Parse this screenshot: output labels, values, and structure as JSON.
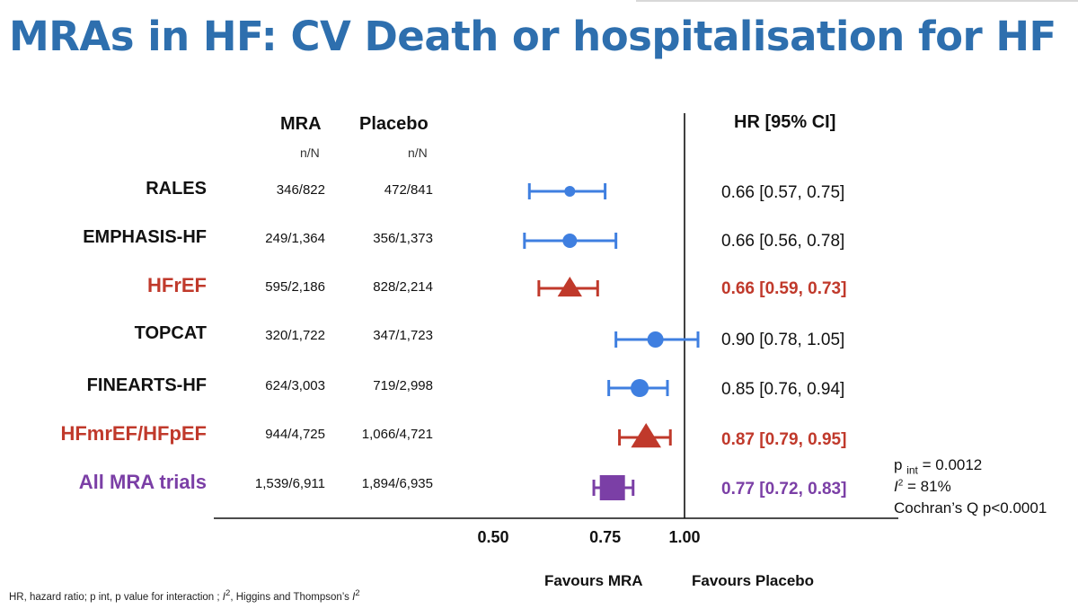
{
  "title": "MRAs in HF: CV Death or hospitalisation for HF",
  "columns": {
    "mra": "MRA",
    "placebo": "Placebo",
    "nN": "n/N",
    "hr": "HR [95% CI]"
  },
  "rows": [
    {
      "study": "RALES",
      "mra": "346/822",
      "placebo": "472/841",
      "hr_text": "0.66 [0.57, 0.75]"
    },
    {
      "study": "EMPHASIS-HF",
      "mra": "249/1,364",
      "placebo": "356/1,373",
      "hr_text": "0.66 [0.56, 0.78]"
    },
    {
      "study": "HFrEF",
      "mra": "595/2,186",
      "placebo": "828/2,214",
      "hr_text": "0.66 [0.59, 0.73]"
    },
    {
      "study": "TOPCAT",
      "mra": "320/1,722",
      "placebo": "347/1,723",
      "hr_text": "0.90 [0.78, 1.05]"
    },
    {
      "study": "FINEARTS-HF",
      "mra": "624/3,003",
      "placebo": "719/2,998",
      "hr_text": "0.85 [0.76, 0.94]"
    },
    {
      "study": "HFmrEF/HFpEF",
      "mra": "944/4,725",
      "placebo": "1,066/4,721",
      "hr_text": "0.87 [0.79, 0.95]"
    },
    {
      "study": "All MRA trials",
      "mra": "1,539/6,911",
      "placebo": "1,894/6,935",
      "hr_text": "0.77 [0.72, 0.83]"
    }
  ],
  "heterogeneity": {
    "pint_prefix": "p",
    "pint_sub": "int",
    "pint_value": " = 0.0012",
    "i2_letter": "I",
    "i2_sup": "2",
    "i2_value": " = 81%",
    "cochran": "Cochran’s Q p<0.0001"
  },
  "favours": {
    "left": "Favours MRA",
    "right": "Favours Placebo"
  },
  "footnote": {
    "a": "HR, hazard ratio; p int, p value for interaction ; ",
    "i": "I",
    "sup": "2",
    "b": ", Higgins and Thompson’s ",
    "i2": "I",
    "sup2": "2"
  },
  "chart_data": {
    "type": "forest",
    "xscale": "log",
    "xlim": [
      0.5,
      1.05
    ],
    "xticks": [
      0.5,
      0.75,
      1.0
    ],
    "xtick_labels": [
      "0.50",
      "0.75",
      "1.00"
    ],
    "reference_line": 1.0,
    "points": [
      {
        "label": "RALES",
        "hr": 0.66,
        "lo": 0.57,
        "hi": 0.75,
        "marker": "circle",
        "color": "#3f7fe0",
        "size": 6
      },
      {
        "label": "EMPHASIS-HF",
        "hr": 0.66,
        "lo": 0.56,
        "hi": 0.78,
        "marker": "circle",
        "color": "#3f7fe0",
        "size": 8
      },
      {
        "label": "HFrEF",
        "hr": 0.66,
        "lo": 0.59,
        "hi": 0.73,
        "marker": "triangle",
        "color": "#c0392b",
        "size": 13
      },
      {
        "label": "TOPCAT",
        "hr": 0.9,
        "lo": 0.78,
        "hi": 1.05,
        "marker": "circle",
        "color": "#3f7fe0",
        "size": 9
      },
      {
        "label": "FINEARTS-HF",
        "hr": 0.85,
        "lo": 0.76,
        "hi": 0.94,
        "marker": "circle",
        "color": "#3f7fe0",
        "size": 10
      },
      {
        "label": "HFmrEF/HFpEF",
        "hr": 0.87,
        "lo": 0.79,
        "hi": 0.95,
        "marker": "triangle",
        "color": "#c0392b",
        "size": 16
      },
      {
        "label": "All MRA trials",
        "hr": 0.77,
        "lo": 0.72,
        "hi": 0.83,
        "marker": "square",
        "color": "#7b3fa6",
        "size": 14
      }
    ]
  }
}
